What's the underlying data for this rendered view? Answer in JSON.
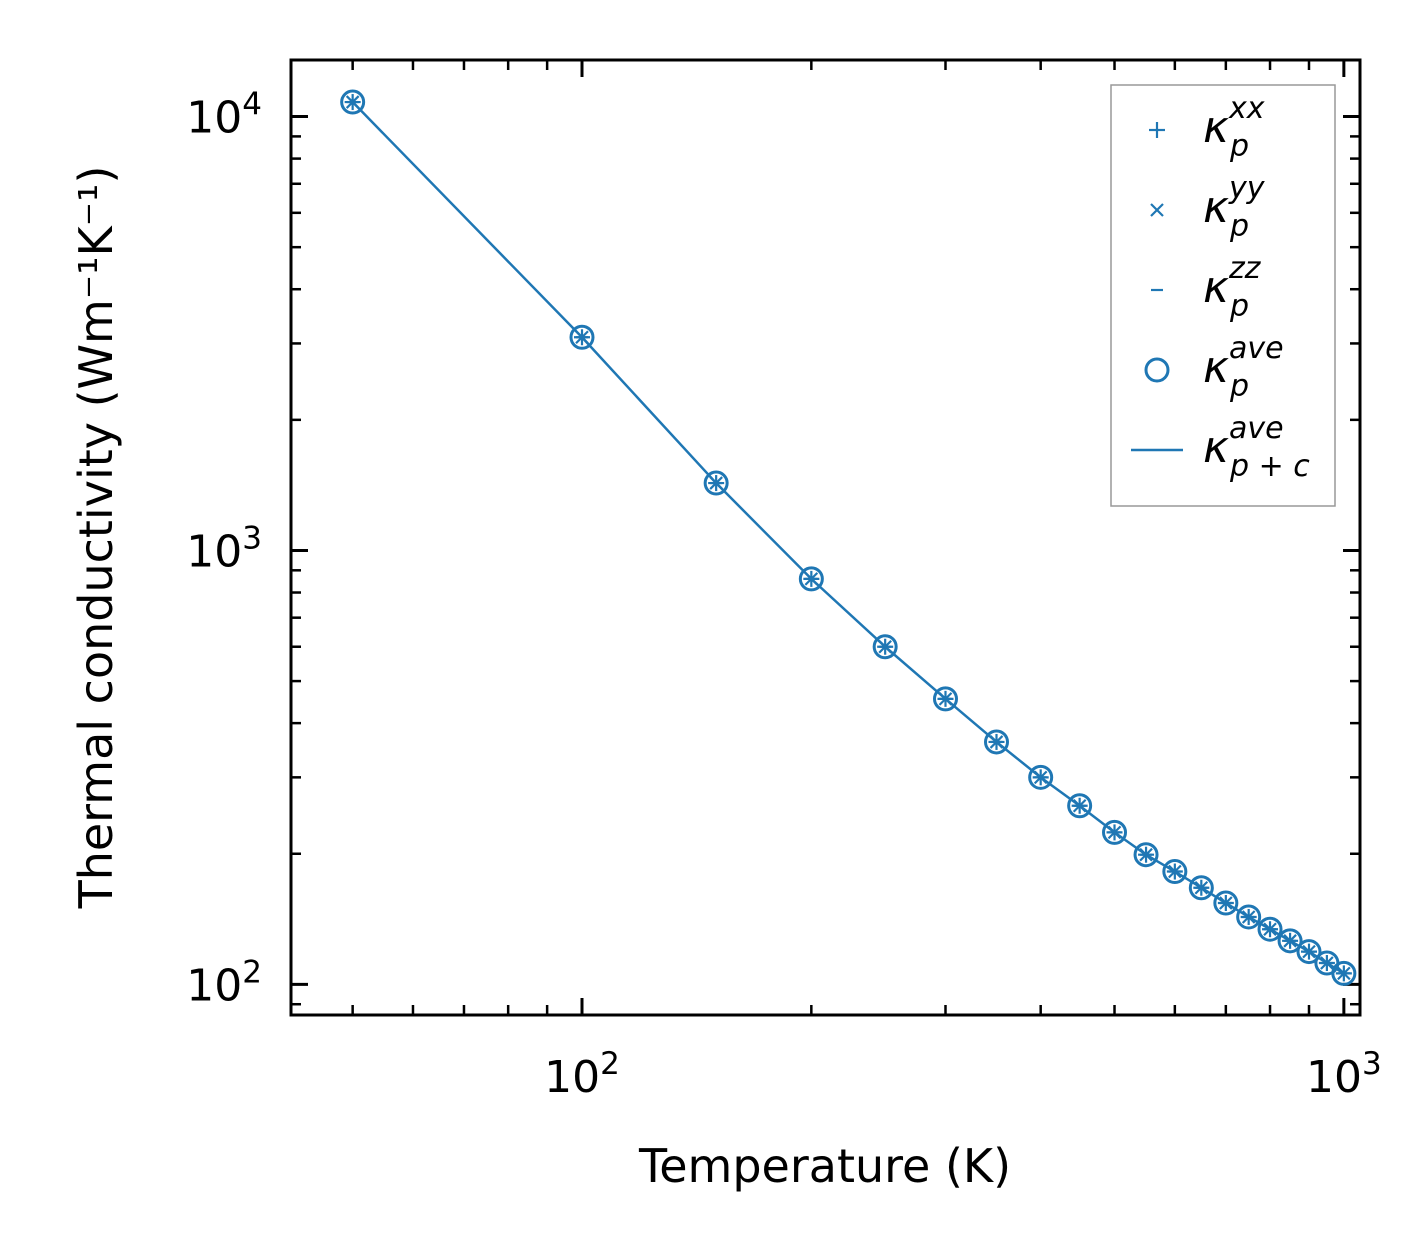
{
  "chart_data": {
    "type": "line",
    "xscale": "log",
    "yscale": "log",
    "xlabel": "Temperature (K)",
    "ylabel": "Thermal conductivity (Wm⁻¹K⁻¹)",
    "xlim": [
      41.5,
      1050
    ],
    "ylim": [
      85,
      13500
    ],
    "x_ticks": [
      {
        "base": "10",
        "exp": "2"
      },
      {
        "base": "10",
        "exp": "3"
      }
    ],
    "y_ticks": [
      {
        "base": "10",
        "exp": "2"
      },
      {
        "base": "10",
        "exp": "3"
      },
      {
        "base": "10",
        "exp": "4"
      }
    ],
    "x": [
      50,
      100,
      150,
      200,
      250,
      300,
      350,
      400,
      450,
      500,
      550,
      600,
      650,
      700,
      750,
      800,
      850,
      900,
      950,
      1000
    ],
    "series": [
      {
        "name": "κ_p^xx",
        "marker": "plus",
        "values": [
          10800,
          3100,
          1430,
          860,
          600,
          455,
          362,
          300,
          258,
          224,
          199,
          182,
          167,
          154,
          143,
          134,
          126,
          119,
          112,
          106
        ]
      },
      {
        "name": "κ_p^yy",
        "marker": "x",
        "values": [
          10800,
          3100,
          1430,
          860,
          600,
          455,
          362,
          300,
          258,
          224,
          199,
          182,
          167,
          154,
          143,
          134,
          126,
          119,
          112,
          106
        ]
      },
      {
        "name": "κ_p^zz",
        "marker": "dash",
        "values": [
          10800,
          3100,
          1430,
          860,
          600,
          455,
          362,
          300,
          258,
          224,
          199,
          182,
          167,
          154,
          143,
          134,
          126,
          119,
          112,
          106
        ]
      },
      {
        "name": "κ_p^ave",
        "marker": "circle",
        "values": [
          10800,
          3100,
          1430,
          860,
          600,
          455,
          362,
          300,
          258,
          224,
          199,
          182,
          167,
          154,
          143,
          134,
          126,
          119,
          112,
          106
        ]
      },
      {
        "name": "κ_p+c^ave",
        "marker": "line",
        "values": [
          10800,
          3100,
          1430,
          860,
          600,
          455,
          362,
          300,
          258,
          224,
          199,
          182,
          167,
          154,
          143,
          134,
          126,
          119,
          112,
          106
        ]
      }
    ],
    "legend": {
      "placement": "top-right",
      "entries": [
        {
          "base": "κ",
          "sup": "xx",
          "sub": "p"
        },
        {
          "base": "κ",
          "sup": "yy",
          "sub": "p"
        },
        {
          "base": "κ",
          "sup": "zz",
          "sub": "p"
        },
        {
          "base": "κ",
          "sup": "ave",
          "sub": "p"
        },
        {
          "base": "κ",
          "sup": "ave",
          "sub": "p + c"
        }
      ]
    },
    "color": "#1f77b4"
  }
}
